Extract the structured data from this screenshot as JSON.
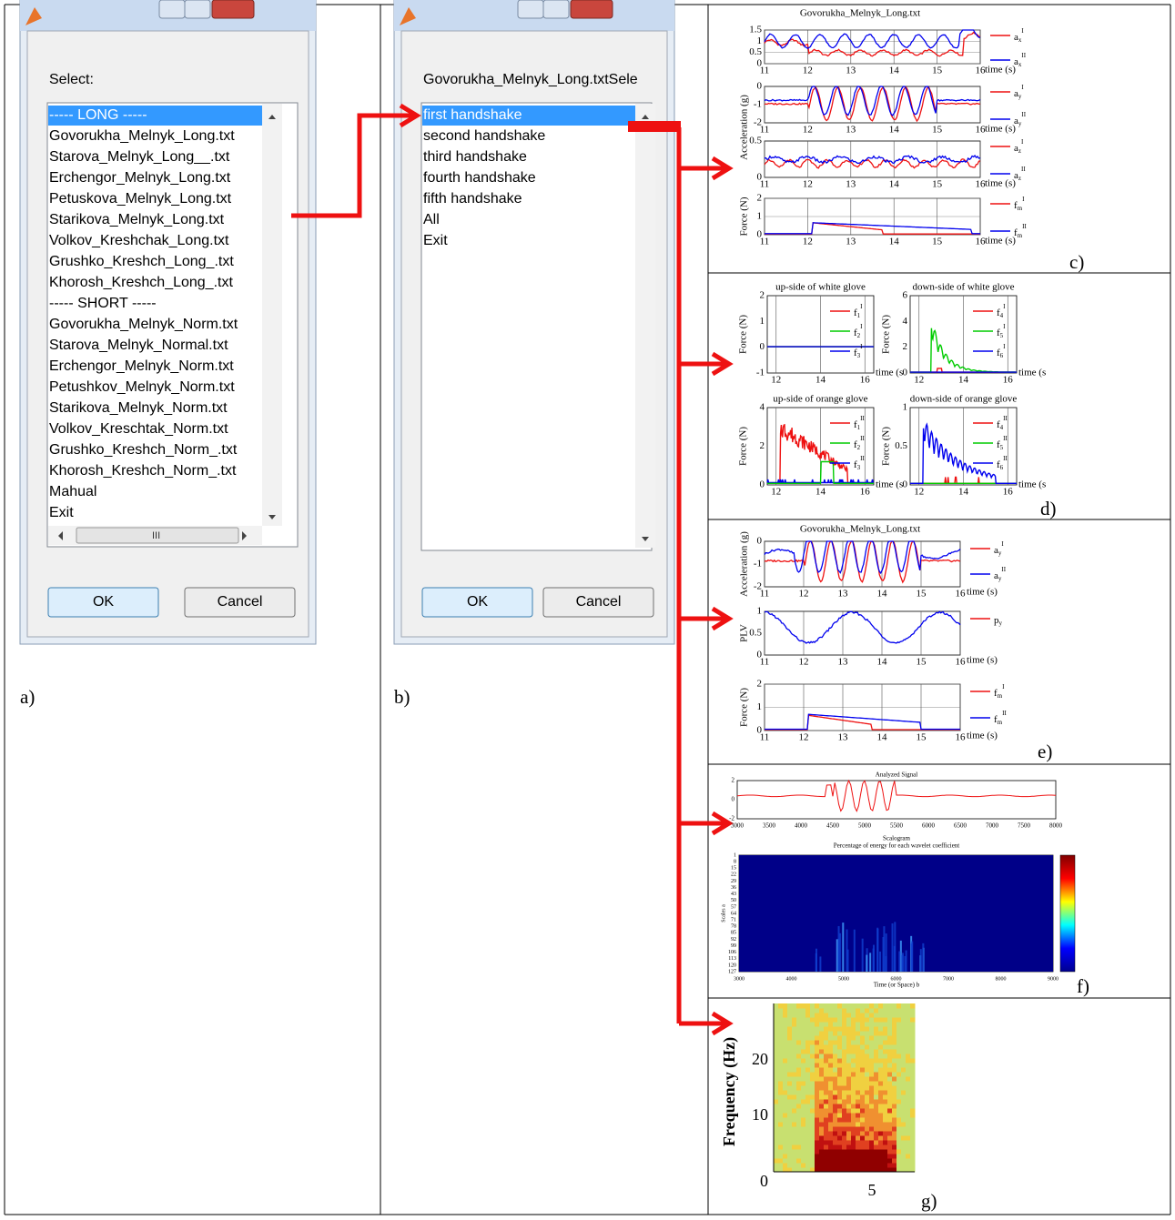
{
  "dialog_a": {
    "prompt": "Select:",
    "items": [
      "----- LONG -----",
      "Govorukha_Melnyk_Long.txt",
      "Starova_Melnyk_Long__.txt",
      "Erchengor_Melnyk_Long.txt",
      "Petuskova_Melnyk_Long.txt",
      "Starikova_Melnyk_Long.txt",
      "Volkov_Kreshchak_Long.txt",
      "Grushko_Kreshch_Long_.txt",
      "Khorosh_Kreshch_Long_.txt",
      "----- SHORT -----",
      "Govorukha_Melnyk_Norm.txt",
      "Starova_Melnyk_Normal.txt",
      "Erchengor_Melnyk_Norm.txt",
      "Petushkov_Melnyk_Norm.txt",
      "Starikova_Melnyk_Norm.txt",
      "Volkov_Kreschtak_Norm.txt",
      "Grushko_Kreshch_Norm_.txt",
      "Khorosh_Kreshch_Norm_.txt",
      "Mahual",
      "Exit"
    ],
    "scroll": "III",
    "ok": "OK",
    "cancel": "Cancel",
    "label": "a)"
  },
  "dialog_b": {
    "prompt": "Govorukha_Melnyk_Long.txtSele",
    "items": [
      "first handshake",
      "second handshake",
      "third handshake",
      "fourth handshake",
      "fifth handshake",
      "All",
      "Exit"
    ],
    "ok": "OK",
    "cancel": "Cancel",
    "label": "b)"
  },
  "panel_c": {
    "title": "Govorukha_Melnyk_Long.txt",
    "ylabels": [
      "Acceleration (g)",
      "Force (N)"
    ],
    "label": "c)",
    "plots": [
      {
        "yticks": [
          "1.5",
          "1",
          "0.5",
          "0"
        ],
        "xticks": [
          "11",
          "12",
          "13",
          "14",
          "15",
          "16"
        ],
        "xlabel": "time (s)",
        "legend": [
          {
            "base": "a",
            "sub": "x",
            "sup": "I"
          },
          {
            "base": "a",
            "sub": "x",
            "sup": "II"
          }
        ]
      },
      {
        "yticks": [
          "0",
          "-1",
          "-2"
        ],
        "xticks": [
          "11",
          "12",
          "13",
          "14",
          "15",
          "16"
        ],
        "xlabel": "time (s)",
        "legend": [
          {
            "base": "a",
            "sub": "y",
            "sup": "I"
          },
          {
            "base": "a",
            "sub": "y",
            "sup": "II"
          }
        ]
      },
      {
        "yticks": [
          "0.5",
          "0"
        ],
        "xticks": [
          "11",
          "12",
          "13",
          "14",
          "15",
          "16"
        ],
        "xlabel": "time (s)",
        "legend": [
          {
            "base": "a",
            "sub": "z",
            "sup": "I"
          },
          {
            "base": "a",
            "sub": "z",
            "sup": "II"
          }
        ]
      },
      {
        "yticks": [
          "2",
          "1",
          "0"
        ],
        "xticks": [
          "11",
          "12",
          "13",
          "14",
          "15",
          "16"
        ],
        "xlabel": "time (s)",
        "legend": [
          {
            "base": "f",
            "sub": "m",
            "sup": "I"
          },
          {
            "base": "f",
            "sub": "m",
            "sup": "II"
          }
        ]
      }
    ]
  },
  "panel_d": {
    "label": "d)",
    "plots": [
      {
        "title": "up-side of white glove",
        "ylabel": "Force (N)",
        "yticks": [
          "2",
          "1",
          "0",
          "-1"
        ],
        "xticks": [
          "12",
          "14",
          "16"
        ],
        "xlabel": "time (s",
        "legend": [
          {
            "base": "f",
            "sub": "1",
            "sup": "I"
          },
          {
            "base": "f",
            "sub": "2",
            "sup": "I"
          },
          {
            "base": "f",
            "sub": "3",
            "sup": "I"
          }
        ]
      },
      {
        "title": "down-side of white glove",
        "ylabel": "Force (N)",
        "yticks": [
          "6",
          "4",
          "2",
          "0"
        ],
        "xticks": [
          "12",
          "14",
          "16"
        ],
        "xlabel": "time (s",
        "legend": [
          {
            "base": "f",
            "sub": "4",
            "sup": "I"
          },
          {
            "base": "f",
            "sub": "5",
            "sup": "I"
          },
          {
            "base": "f",
            "sub": "6",
            "sup": "I"
          }
        ]
      },
      {
        "title": "up-side of orange glove",
        "ylabel": "Force (N)",
        "yticks": [
          "4",
          "2",
          "0"
        ],
        "xticks": [
          "12",
          "14",
          "16"
        ],
        "xlabel": "time (s",
        "legend": [
          {
            "base": "f",
            "sub": "1",
            "sup": "II"
          },
          {
            "base": "f",
            "sub": "2",
            "sup": "II"
          },
          {
            "base": "f",
            "sub": "3",
            "sup": "II"
          }
        ]
      },
      {
        "title": "down-side of orange glove",
        "ylabel": "Force (N)",
        "yticks": [
          "1",
          "0.5",
          "0"
        ],
        "xticks": [
          "12",
          "14",
          "16"
        ],
        "xlabel": "time (s",
        "legend": [
          {
            "base": "f",
            "sub": "4",
            "sup": "II"
          },
          {
            "base": "f",
            "sub": "5",
            "sup": "II"
          },
          {
            "base": "f",
            "sub": "6",
            "sup": "II"
          }
        ]
      }
    ]
  },
  "panel_e": {
    "title": "Govorukha_Melnyk_Long.txt",
    "label": "e)",
    "plots": [
      {
        "ylabel": "Acceleration (g)",
        "yticks": [
          "0",
          "-1",
          "-2"
        ],
        "xticks": [
          "11",
          "12",
          "13",
          "14",
          "15",
          "16"
        ],
        "xlabel": "time (s)",
        "legend": [
          {
            "base": "a",
            "sub": "y",
            "sup": "I"
          },
          {
            "base": "a",
            "sub": "y",
            "sup": "II"
          }
        ]
      },
      {
        "ylabel": "PLV",
        "yticks": [
          "1",
          "0.5",
          "0"
        ],
        "xticks": [
          "11",
          "12",
          "13",
          "14",
          "15",
          "16"
        ],
        "xlabel": "time (s)",
        "legend": [
          {
            "base": "p",
            "sub": "y",
            "sup": ""
          }
        ]
      },
      {
        "ylabel": "Force (N)",
        "yticks": [
          "2",
          "1",
          "0"
        ],
        "xticks": [
          "11",
          "12",
          "13",
          "14",
          "15",
          "16"
        ],
        "xlabel": "time (s)",
        "legend": [
          {
            "base": "f",
            "sub": "m",
            "sup": "I"
          },
          {
            "base": "f",
            "sub": "m",
            "sup": "II"
          }
        ]
      }
    ]
  },
  "panel_f": {
    "label": "f)",
    "signal": {
      "title": "Analyzed Signal",
      "yticks": [
        "2",
        "0",
        "-2"
      ],
      "xticks": [
        "3000",
        "3500",
        "4000",
        "4500",
        "5000",
        "5500",
        "6000",
        "6500",
        "7000",
        "7500",
        "8000"
      ]
    },
    "scalogram": {
      "title": "Scalogram",
      "subtitle": "Percentage of energy for each wavelet coefficient",
      "ylabel": "Scales a",
      "xlabel": "Time (or Space) b",
      "yticks": [
        "1",
        "8",
        "15",
        "22",
        "29",
        "36",
        "43",
        "50",
        "57",
        "64",
        "71",
        "78",
        "85",
        "92",
        "99",
        "106",
        "113",
        "120",
        "127"
      ],
      "xticks": [
        "3000",
        "4000",
        "5000",
        "6000",
        "7000",
        "8000",
        "9000"
      ]
    }
  },
  "panel_g": {
    "label": "g)",
    "ylabel": "Frequency (Hz)",
    "yticks": [
      "20",
      "10",
      "0"
    ],
    "xticks": [
      "5"
    ]
  }
}
